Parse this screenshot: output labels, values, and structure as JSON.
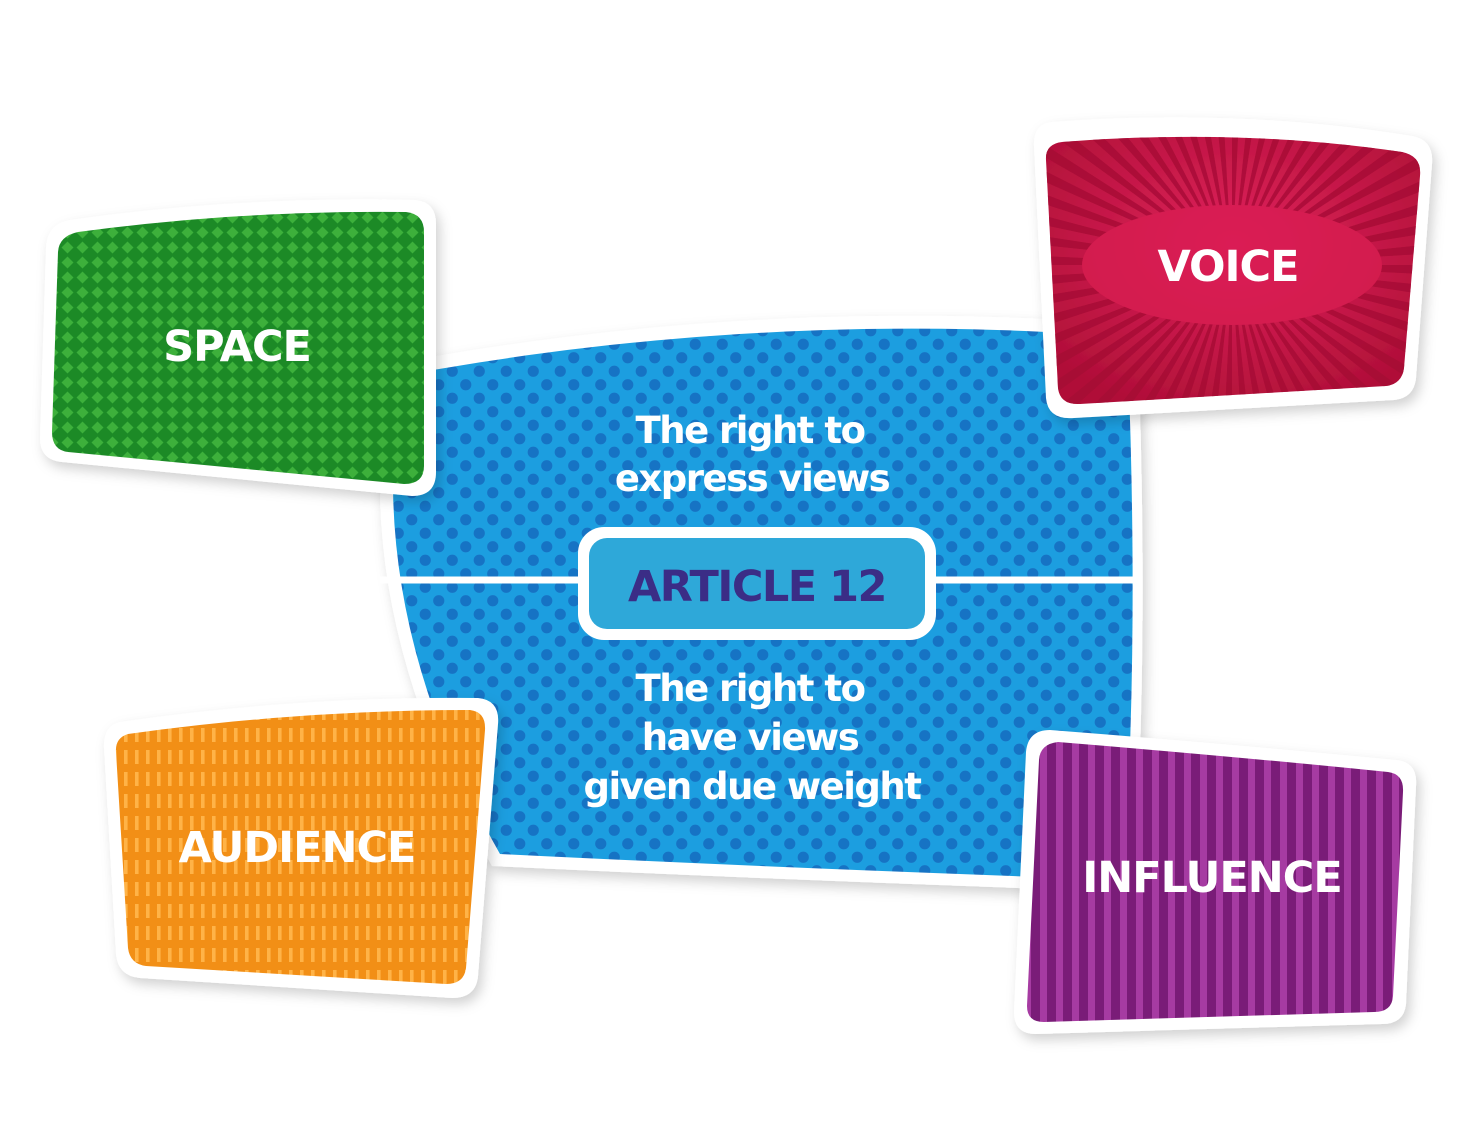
{
  "colors": {
    "center_blue": "#1f9ee0",
    "center_dots": "#1773c4",
    "article_box": "#2ea8d9",
    "article_text": "#3b2d86",
    "space_green": "#1f8f2b",
    "voice_red": "#c8153f",
    "audience_orange": "#f59b1c",
    "influence_purple": "#8e2489"
  },
  "center": {
    "article_label": "ARTICLE 12",
    "top_lines": [
      "The right to",
      "express views"
    ],
    "bottom_lines": [
      "The right to",
      "have views",
      "given due weight"
    ]
  },
  "cards": {
    "space": "SPACE",
    "voice": "VOICE",
    "audience": "AUDIENCE",
    "influence": "INFLUENCE"
  }
}
